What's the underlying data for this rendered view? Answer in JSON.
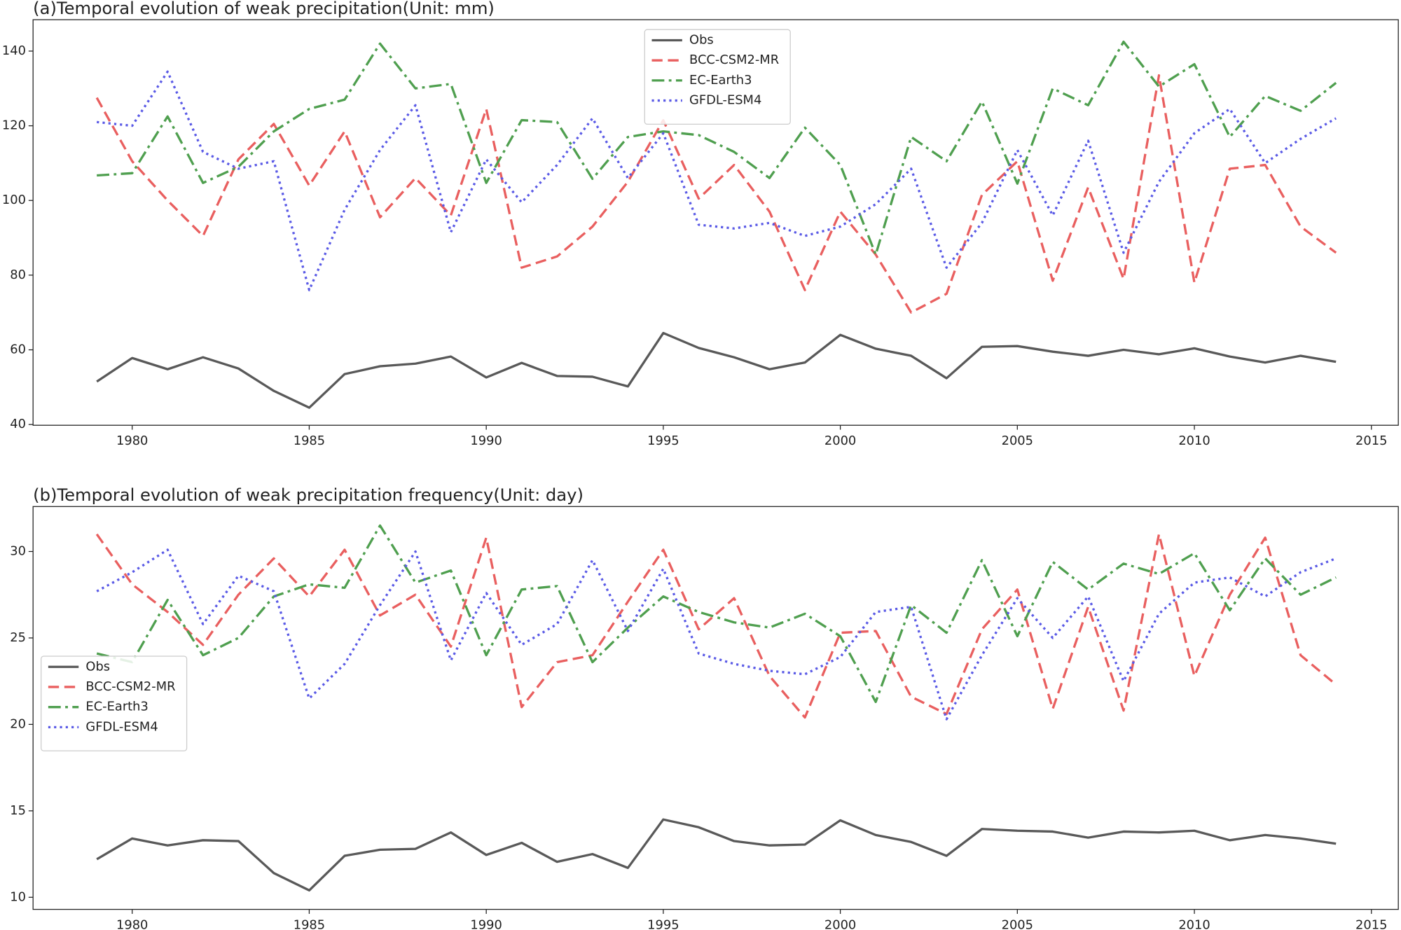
{
  "chart_data": [
    {
      "type": "line",
      "title": "(a)Temporal evolution of weak precipitation(Unit: mm)",
      "x": [
        1979,
        1980,
        1981,
        1982,
        1983,
        1984,
        1985,
        1986,
        1987,
        1988,
        1989,
        1990,
        1991,
        1992,
        1993,
        1994,
        1995,
        1996,
        1997,
        1998,
        1999,
        2000,
        2001,
        2002,
        2003,
        2004,
        2005,
        2006,
        2007,
        2008,
        2009,
        2010,
        2011,
        2012,
        2013,
        2014
      ],
      "series": [
        {
          "name": "Obs",
          "color": "#595959",
          "dash": "solid",
          "values": [
            51.5,
            57.8,
            54.8,
            58,
            55,
            49,
            44.5,
            53.5,
            55.6,
            56.3,
            58.2,
            52.6,
            56.5,
            53,
            52.8,
            50.2,
            64.5,
            60.5,
            58,
            54.8,
            56.6,
            64,
            60.3,
            58.4,
            52.4,
            60.8,
            61,
            59.5,
            58.4,
            60,
            58.8,
            60.4,
            58.2,
            56.6,
            58.4,
            56.8
          ]
        },
        {
          "name": "BCC-CSM2-MR",
          "color": "#e95f5f",
          "dash": "dashed",
          "values": [
            127.5,
            110.5,
            100,
            90.5,
            111,
            120.5,
            104,
            118.5,
            95.5,
            106,
            96,
            124.5,
            82,
            85,
            93,
            105,
            121.5,
            100.5,
            109.5,
            97,
            76,
            97,
            85.5,
            70,
            75,
            101.5,
            110.5,
            78.5,
            103.5,
            79,
            133.5,
            78,
            108.5,
            109.5,
            93,
            86
          ]
        },
        {
          "name": "EC-Earth3",
          "color": "#4f9f4f",
          "dash": "dashdot",
          "values": [
            106.7,
            107.3,
            122.5,
            104.7,
            109,
            118.5,
            124.5,
            127,
            142,
            130,
            131.2,
            104.7,
            121.5,
            121,
            105.8,
            117,
            118.5,
            117.5,
            113,
            106,
            119.5,
            109.5,
            85.5,
            117,
            110.5,
            126.5,
            104.5,
            130,
            125.5,
            142.5,
            130.5,
            136.5,
            117,
            128,
            124,
            131.5
          ]
        },
        {
          "name": "GFDL-ESM4",
          "color": "#5a5ae6",
          "dash": "dotted",
          "values": [
            121,
            120,
            134.5,
            113,
            108.5,
            110.5,
            76,
            97.5,
            113.5,
            125.5,
            91.5,
            111,
            99.5,
            109.5,
            122,
            106,
            118,
            93.5,
            92.5,
            94,
            90.5,
            93,
            99,
            108.5,
            82,
            94,
            113.5,
            96,
            116,
            86,
            105,
            118,
            124.5,
            110,
            116.5,
            122
          ]
        }
      ],
      "xlim": [
        1977.2,
        2015.76
      ],
      "xticks": [
        1980,
        1985,
        1990,
        1995,
        2000,
        2005,
        2010,
        2015
      ],
      "ylim": [
        39.8,
        148.4
      ],
      "yticks": [
        40,
        60,
        80,
        100,
        120,
        140
      ],
      "legend": "upper center"
    },
    {
      "type": "line",
      "title": "(b)Temporal evolution of weak precipitation frequency(Unit: day)",
      "x": [
        1979,
        1980,
        1981,
        1982,
        1983,
        1984,
        1985,
        1986,
        1987,
        1988,
        1989,
        1990,
        1991,
        1992,
        1993,
        1994,
        1995,
        1996,
        1997,
        1998,
        1999,
        2000,
        2001,
        2002,
        2003,
        2004,
        2005,
        2006,
        2007,
        2008,
        2009,
        2010,
        2011,
        2012,
        2013,
        2014
      ],
      "series": [
        {
          "name": "Obs",
          "color": "#595959",
          "dash": "solid",
          "values": [
            12.2,
            13.4,
            13,
            13.3,
            13.25,
            11.4,
            10.4,
            12.4,
            12.75,
            12.8,
            13.75,
            12.45,
            13.15,
            12.05,
            12.5,
            11.7,
            14.5,
            14.05,
            13.25,
            13,
            13.05,
            14.45,
            13.6,
            13.2,
            12.4,
            13.95,
            13.85,
            13.8,
            13.45,
            13.8,
            13.75,
            13.85,
            13.3,
            13.6,
            13.4,
            13.1
          ]
        },
        {
          "name": "BCC-CSM2-MR",
          "color": "#e95f5f",
          "dash": "dashed",
          "values": [
            31,
            28.1,
            26.5,
            24.6,
            27.5,
            29.6,
            27.4,
            30.1,
            26.3,
            27.5,
            24.5,
            30.8,
            21,
            23.6,
            24,
            27.1,
            30.1,
            25.5,
            27.3,
            22.8,
            20.4,
            25.3,
            25.4,
            21.6,
            20.6,
            25.5,
            27.8,
            20.9,
            26.8,
            20.8,
            31,
            22.8,
            27.5,
            30.8,
            24,
            22.3
          ]
        },
        {
          "name": "EC-Earth3",
          "color": "#4f9f4f",
          "dash": "dashdot",
          "values": [
            24.1,
            23.6,
            27.2,
            24,
            25,
            27.4,
            28.1,
            27.9,
            31.5,
            28.2,
            28.9,
            24,
            27.8,
            28,
            23.6,
            25.6,
            27.4,
            26.5,
            25.9,
            25.6,
            26.4,
            25.1,
            21.3,
            26.9,
            25.3,
            29.5,
            25.1,
            29.4,
            27.8,
            29.3,
            28.7,
            29.9,
            26.6,
            29.6,
            27.5,
            28.5
          ]
        },
        {
          "name": "GFDL-ESM4",
          "color": "#5a5ae6",
          "dash": "dotted",
          "values": [
            27.7,
            28.8,
            30.1,
            25.8,
            28.6,
            27.7,
            21.5,
            23.5,
            26.9,
            30,
            23.7,
            27.6,
            24.6,
            25.8,
            29.5,
            25.4,
            29,
            24.1,
            23.5,
            23.1,
            22.9,
            23.9,
            26.5,
            26.8,
            20.3,
            24,
            27.3,
            25,
            27.4,
            22.5,
            26.4,
            28.2,
            28.5,
            27.4,
            28.8,
            29.6
          ]
        }
      ],
      "xlim": [
        1977.2,
        2015.76
      ],
      "xticks": [
        1980,
        1985,
        1990,
        1995,
        2000,
        2005,
        2010,
        2015
      ],
      "ylim": [
        9.3,
        32.6
      ],
      "yticks": [
        10,
        15,
        20,
        25,
        30
      ],
      "legend": "center left"
    }
  ]
}
